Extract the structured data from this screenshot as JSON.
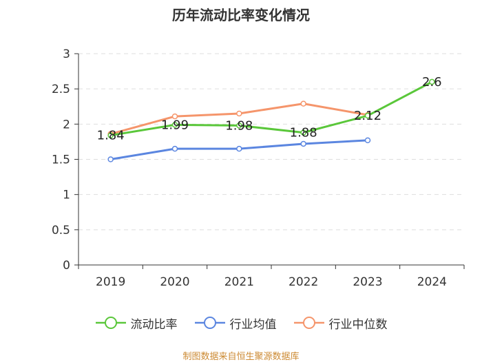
{
  "chart_data": {
    "type": "line",
    "title": "历年流动比率变化情况",
    "categories": [
      "2019",
      "2020",
      "2021",
      "2022",
      "2023",
      "2024"
    ],
    "ylim": [
      0,
      3
    ],
    "yticks": [
      0,
      0.5,
      1,
      1.5,
      2,
      2.5,
      3
    ],
    "ytick_labels": [
      "0",
      "0.5",
      "1",
      "1.5",
      "2",
      "2.5",
      "3"
    ],
    "grid": true,
    "legend_position": "bottom-center",
    "series": [
      {
        "name": "流动比率",
        "color": "#5ac73a",
        "values": [
          1.84,
          1.99,
          1.98,
          1.88,
          2.12,
          2.6
        ],
        "labels": [
          "1.84",
          "1.99",
          "1.98",
          "1.88",
          "2.12",
          "2.6"
        ]
      },
      {
        "name": "行业均值",
        "color": "#5b86e0",
        "values": [
          1.5,
          1.65,
          1.65,
          1.72,
          1.77,
          null
        ]
      },
      {
        "name": "行业中位数",
        "color": "#f5956b",
        "values": [
          1.86,
          2.11,
          2.15,
          2.29,
          2.13,
          null
        ]
      }
    ]
  },
  "footer": {
    "source": "制图数据来自恒生聚源数据库"
  }
}
